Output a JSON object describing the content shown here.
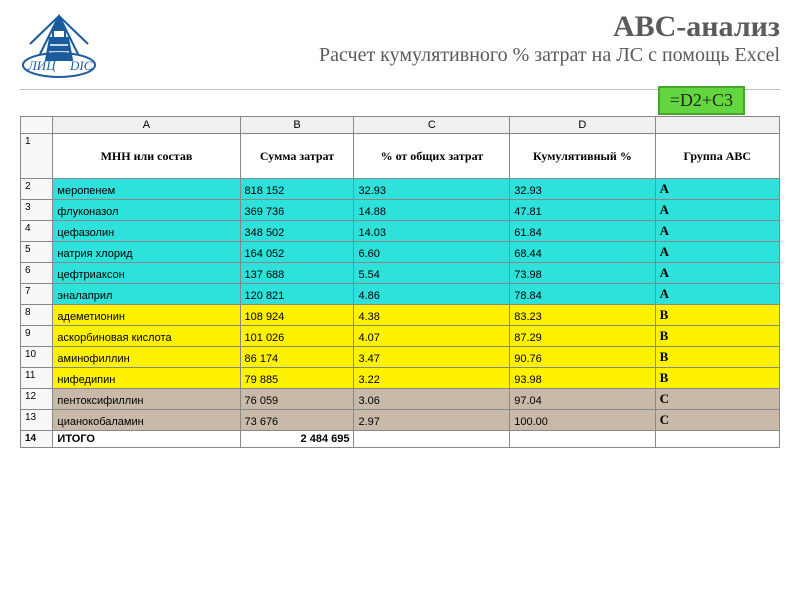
{
  "logo": {
    "text_left": "ЛИЦ",
    "text_right": "DIC",
    "color": "#1a5b9e"
  },
  "title": {
    "main": "АВС-анализ",
    "sub": "Расчет кумулятивного % затрат на ЛС с помощь Excel"
  },
  "formula": "=D2+C3",
  "columns_excel": [
    "A",
    "B",
    "C",
    "D",
    ""
  ],
  "headers": [
    "МНН  или состав",
    "Сумма затрат",
    "% от общих затрат",
    "Кумулятивный %",
    "Группа   АВС"
  ],
  "rows": [
    {
      "n": "2",
      "name": "меропенем",
      "sum": "818 152",
      "pct": "32.93",
      "cum": "32.93",
      "grp": "A",
      "cls": "a"
    },
    {
      "n": "3",
      "name": "флуконазол",
      "sum": "369 736",
      "pct": "14.88",
      "cum": "47.81",
      "grp": "A",
      "cls": "a"
    },
    {
      "n": "4",
      "name": "цефазолин",
      "sum": "348 502",
      "pct": "14.03",
      "cum": "61.84",
      "grp": "A",
      "cls": "a"
    },
    {
      "n": "5",
      "name": "натрия хлорид",
      "sum": "164 052",
      "pct": "6.60",
      "cum": "68.44",
      "grp": "A",
      "cls": "a"
    },
    {
      "n": "6",
      "name": "цефтриаксон",
      "sum": "137 688",
      "pct": "5.54",
      "cum": "73.98",
      "grp": "A",
      "cls": "a"
    },
    {
      "n": "7",
      "name": "эналаприл",
      "sum": "120 821",
      "pct": "4.86",
      "cum": "78.84",
      "grp": "A",
      "cls": "a"
    },
    {
      "n": "8",
      "name": "адеметионин",
      "sum": "108 924",
      "pct": "4.38",
      "cum": "83.23",
      "grp": "B",
      "cls": "b"
    },
    {
      "n": "9",
      "name": "аскорбиновая кислота",
      "sum": "101 026",
      "pct": "4.07",
      "cum": "87.29",
      "grp": "B",
      "cls": "b"
    },
    {
      "n": "10",
      "name": "аминофиллин",
      "sum": "86 174",
      "pct": "3.47",
      "cum": "90.76",
      "grp": "B",
      "cls": "b"
    },
    {
      "n": "11",
      "name": "нифедипин",
      "sum": "79 885",
      "pct": "3.22",
      "cum": "93.98",
      "grp": "B",
      "cls": "b"
    },
    {
      "n": "12",
      "name": "пентоксифиллин",
      "sum": "76 059",
      "pct": "3.06",
      "cum": "97.04",
      "grp": "C",
      "cls": "c"
    },
    {
      "n": "13",
      "name": "цианокобаламин",
      "sum": "73 676",
      "pct": "2.97",
      "cum": "100.00",
      "grp": "C",
      "cls": "c"
    }
  ],
  "total": {
    "n": "14",
    "label": "ИТОГО",
    "sum": "2 484 695"
  },
  "colors": {
    "group_a": "#2ee1db",
    "group_b": "#fff200",
    "group_c": "#c9b9a8",
    "formula_bg": "#63d53f"
  }
}
